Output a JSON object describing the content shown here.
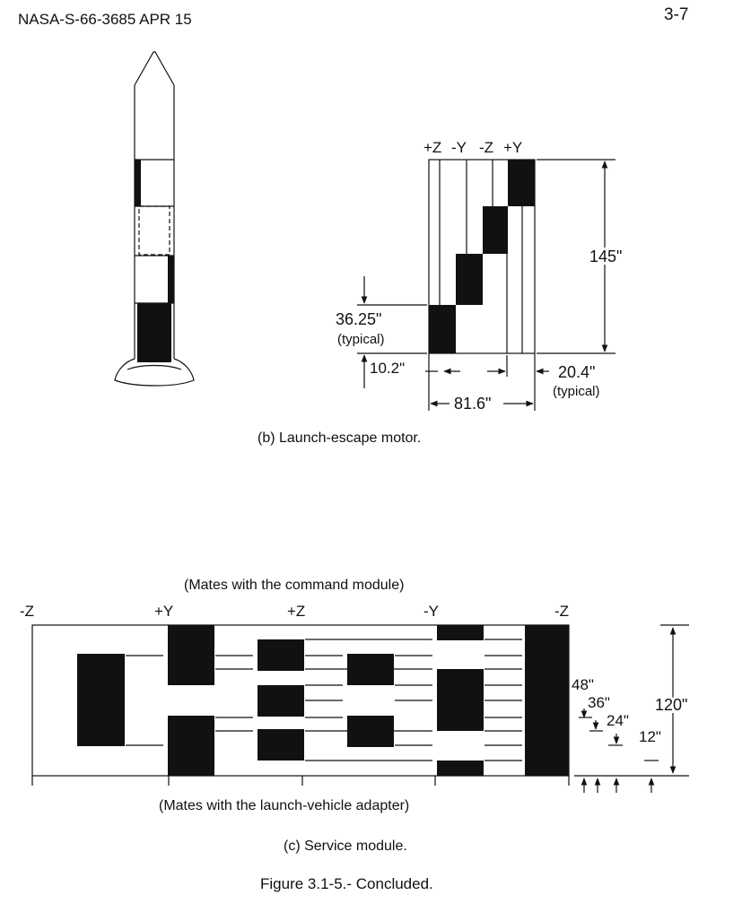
{
  "header": {
    "doc_id": "NASA-S-66-3685 APR 15",
    "page_number": "3-7"
  },
  "panel_b": {
    "caption": "(b) Launch-escape motor.",
    "axis_labels": [
      "+Z",
      "-Y",
      "-Z",
      "+Y"
    ],
    "dim_height": "145\"",
    "dim_step": "36.25\"",
    "dim_step_note": "(typical)",
    "dim_offset": "10.2\"",
    "dim_width": "20.4\"",
    "dim_width_note": "(typical)",
    "dim_total": "81.6\""
  },
  "panel_c": {
    "top_note": "(Mates with the command module)",
    "bottom_note": "(Mates with the launch-vehicle adapter)",
    "caption": "(c) Service module.",
    "axis_labels": [
      "-Z",
      "+Y",
      "+Z",
      "-Y",
      "-Z"
    ],
    "dim_48": "48\"",
    "dim_36": "36\"",
    "dim_24": "24\"",
    "dim_12": "12\"",
    "dim_120": "120\""
  },
  "figure_caption": "Figure 3.1-5.- Concluded."
}
